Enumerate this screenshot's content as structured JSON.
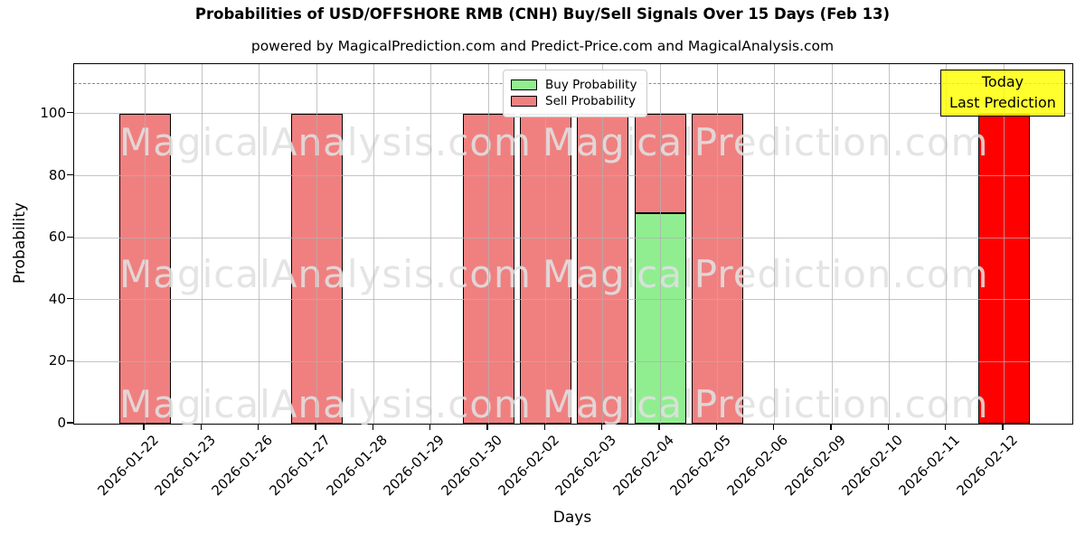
{
  "title": "Probabilities of USD/OFFSHORE RMB (CNH) Buy/Sell Signals Over 15 Days (Feb 13)",
  "subtitle": "powered by MagicalPrediction.com and Predict-Price.com and MagicalAnalysis.com",
  "annotation": {
    "line1": "Today",
    "line2": "Last Prediction"
  },
  "legend": {
    "items": [
      {
        "label": "Buy Probability",
        "color": "#90ee90"
      },
      {
        "label": "Sell Probability",
        "color": "#f08080"
      }
    ]
  },
  "watermarks": {
    "texts": [
      "MagicalAnalysis.com",
      "MagicalPrediction.com"
    ]
  },
  "chart_data": {
    "type": "bar",
    "stacked": true,
    "title": "Probabilities of USD/OFFSHORE RMB (CNH) Buy/Sell Signals Over 15 Days (Feb 13)",
    "xlabel": "Days",
    "ylabel": "Probability",
    "categories": [
      "2026-01-22",
      "2026-01-23",
      "2026-01-26",
      "2026-01-27",
      "2026-01-28",
      "2026-01-29",
      "2026-01-30",
      "2026-02-02",
      "2026-02-03",
      "2026-02-04",
      "2026-02-05",
      "2026-02-06",
      "2026-02-09",
      "2026-02-10",
      "2026-02-11",
      "2026-02-12"
    ],
    "series": [
      {
        "name": "Buy Probability",
        "color": "#90ee90",
        "values": [
          0,
          0,
          0,
          0,
          0,
          0,
          0,
          0,
          0,
          68,
          0,
          0,
          0,
          0,
          0,
          0
        ]
      },
      {
        "name": "Sell Probability",
        "color": "#f08080",
        "values": [
          100,
          0,
          0,
          100,
          0,
          0,
          100,
          100,
          100,
          32,
          100,
          0,
          0,
          0,
          0,
          0
        ]
      },
      {
        "name": "Today / Last Prediction",
        "color": "#ff0000",
        "values": [
          0,
          0,
          0,
          0,
          0,
          0,
          0,
          0,
          0,
          0,
          0,
          0,
          0,
          0,
          0,
          100
        ]
      }
    ],
    "ylim": [
      0,
      116
    ],
    "yticks": [
      0,
      20,
      40,
      60,
      80,
      100
    ],
    "dashed_line_y": 110,
    "grid": true,
    "bar_edge_color": "#000000",
    "legend_position": "upper center"
  }
}
